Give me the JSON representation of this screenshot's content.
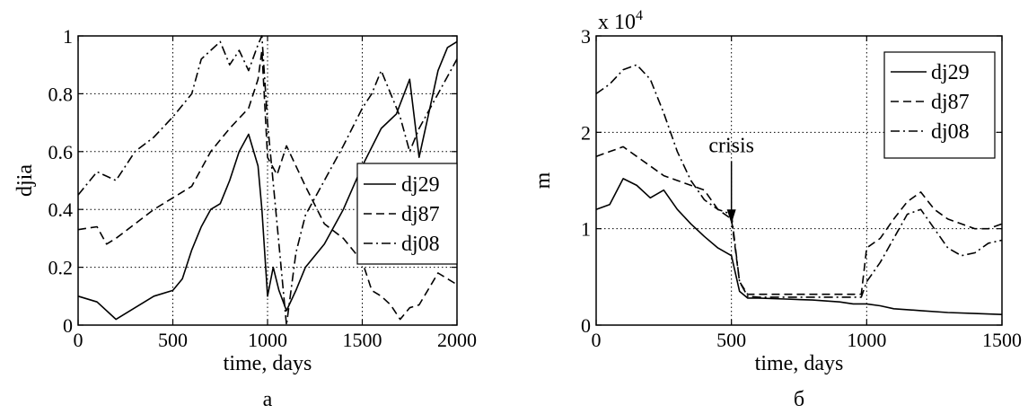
{
  "panels": [
    {
      "caption": "а",
      "chart_data": {
        "type": "line",
        "xlabel": "time, days",
        "ylabel": "djia",
        "xlim": [
          0,
          2000
        ],
        "ylim": [
          0,
          1
        ],
        "xticks": [
          "0",
          "500",
          "1000",
          "1500",
          "2000"
        ],
        "yticks": [
          "0",
          "0.2",
          "0.4",
          "0.6",
          "0.8",
          "1"
        ],
        "grid": true,
        "legend_position": "right",
        "series": [
          {
            "name": "dj29",
            "style": "solid",
            "x": [
              0,
              100,
              200,
              300,
              400,
              500,
              550,
              600,
              650,
              700,
              750,
              800,
              850,
              900,
              950,
              970,
              1000,
              1030,
              1060,
              1100,
              1150,
              1200,
              1300,
              1400,
              1500,
              1600,
              1680,
              1750,
              1800,
              1850,
              1900,
              1950,
              2000
            ],
            "y": [
              0.1,
              0.08,
              0.02,
              0.06,
              0.1,
              0.12,
              0.16,
              0.26,
              0.34,
              0.4,
              0.42,
              0.5,
              0.6,
              0.66,
              0.55,
              0.4,
              0.1,
              0.2,
              0.12,
              0.05,
              0.12,
              0.2,
              0.28,
              0.4,
              0.55,
              0.68,
              0.73,
              0.85,
              0.58,
              0.73,
              0.88,
              0.96,
              0.98
            ]
          },
          {
            "name": "dj87",
            "style": "dashed",
            "x": [
              0,
              100,
              150,
              200,
              300,
              400,
              500,
              600,
              700,
              800,
              900,
              950,
              970,
              1000,
              1050,
              1100,
              1200,
              1300,
              1400,
              1500,
              1550,
              1600,
              1650,
              1700,
              1750,
              1800,
              1900,
              2000
            ],
            "y": [
              0.33,
              0.34,
              0.28,
              0.3,
              0.35,
              0.4,
              0.44,
              0.48,
              0.6,
              0.68,
              0.75,
              0.85,
              0.95,
              0.58,
              0.52,
              0.62,
              0.48,
              0.35,
              0.3,
              0.22,
              0.12,
              0.1,
              0.07,
              0.02,
              0.06,
              0.07,
              0.18,
              0.14
            ]
          },
          {
            "name": "dj08",
            "style": "dashdot",
            "x": [
              0,
              100,
              200,
              300,
              400,
              500,
              600,
              650,
              700,
              750,
              800,
              850,
              900,
              950,
              970,
              1000,
              1050,
              1100,
              1150,
              1200,
              1300,
              1400,
              1500,
              1550,
              1600,
              1700,
              1750,
              1800,
              1900,
              2000
            ],
            "y": [
              0.45,
              0.53,
              0.5,
              0.6,
              0.65,
              0.72,
              0.8,
              0.92,
              0.95,
              0.98,
              0.9,
              0.95,
              0.88,
              0.97,
              1.0,
              0.7,
              0.35,
              0.0,
              0.25,
              0.38,
              0.5,
              0.62,
              0.75,
              0.8,
              0.88,
              0.72,
              0.6,
              0.68,
              0.8,
              0.92
            ]
          }
        ]
      }
    },
    {
      "caption": "б",
      "chart_data": {
        "type": "line",
        "xlabel": "time, days",
        "ylabel": "m",
        "multiplier_label": "x 10",
        "multiplier_exponent": "4",
        "xlim": [
          0,
          1500
        ],
        "ylim": [
          0,
          3
        ],
        "xticks": [
          "0",
          "500",
          "1000",
          "1500"
        ],
        "yticks": [
          "0",
          "1",
          "2",
          "3"
        ],
        "grid": true,
        "legend_position": "top-right",
        "annotation": {
          "text": "crisis",
          "x": 500,
          "y": 1.05
        },
        "series": [
          {
            "name": "dj29",
            "style": "solid",
            "x": [
              0,
              50,
              100,
              150,
              200,
              250,
              300,
              350,
              400,
              450,
              500,
              530,
              560,
              600,
              700,
              800,
              900,
              950,
              1000,
              1050,
              1100,
              1200,
              1300,
              1400,
              1500
            ],
            "y": [
              1.2,
              1.25,
              1.52,
              1.45,
              1.32,
              1.4,
              1.2,
              1.05,
              0.92,
              0.8,
              0.72,
              0.35,
              0.28,
              0.28,
              0.27,
              0.26,
              0.24,
              0.22,
              0.22,
              0.2,
              0.17,
              0.15,
              0.13,
              0.12,
              0.11
            ]
          },
          {
            "name": "dj87",
            "style": "dashed",
            "x": [
              0,
              50,
              100,
              150,
              200,
              250,
              300,
              350,
              400,
              450,
              500,
              530,
              560,
              600,
              700,
              800,
              900,
              950,
              980,
              1000,
              1050,
              1100,
              1150,
              1200,
              1250,
              1300,
              1350,
              1400,
              1450,
              1500
            ],
            "y": [
              1.75,
              1.8,
              1.85,
              1.75,
              1.65,
              1.55,
              1.5,
              1.45,
              1.4,
              1.2,
              1.1,
              0.45,
              0.32,
              0.32,
              0.32,
              0.32,
              0.32,
              0.32,
              0.32,
              0.8,
              0.9,
              1.1,
              1.28,
              1.38,
              1.2,
              1.1,
              1.05,
              1.0,
              1.0,
              1.05
            ]
          },
          {
            "name": "dj08",
            "style": "dashdot",
            "x": [
              0,
              50,
              100,
              150,
              200,
              250,
              300,
              350,
              400,
              450,
              500,
              530,
              560,
              600,
              700,
              800,
              900,
              950,
              980,
              1000,
              1050,
              1100,
              1150,
              1200,
              1250,
              1300,
              1350,
              1400,
              1450,
              1500
            ],
            "y": [
              2.4,
              2.5,
              2.65,
              2.7,
              2.55,
              2.2,
              1.8,
              1.5,
              1.3,
              1.2,
              1.15,
              0.45,
              0.3,
              0.29,
              0.29,
              0.29,
              0.29,
              0.29,
              0.29,
              0.45,
              0.65,
              0.9,
              1.15,
              1.2,
              1.0,
              0.8,
              0.72,
              0.75,
              0.85,
              0.88
            ]
          }
        ]
      }
    }
  ]
}
